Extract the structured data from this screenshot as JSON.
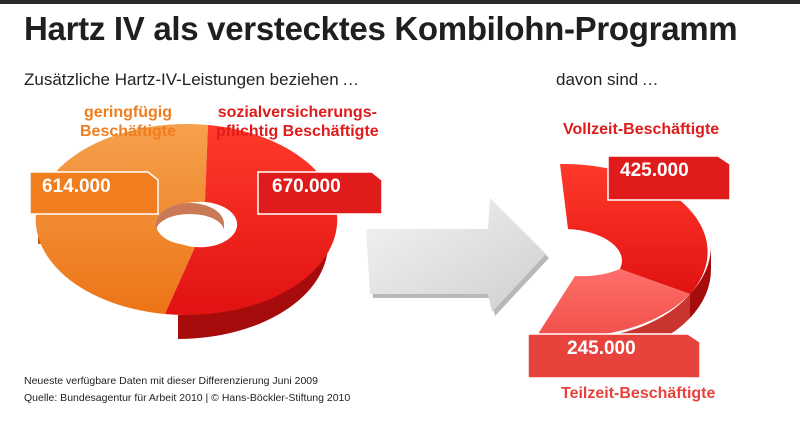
{
  "header": {
    "title": "Hartz IV als verstecktes Kombilohn-Programm",
    "subtitle_left": "Zusätzliche Hartz-IV-Leistungen beziehen …",
    "subtitle_right": "davon sind …"
  },
  "colors": {
    "orange": "#f07d1e",
    "red": "#e01b1b",
    "light_red": "#e8423d",
    "arrow_grey": "#e3e3e3"
  },
  "chart_data": [
    {
      "type": "pie",
      "style": "3d-donut",
      "categories": [
        "geringfügig Beschäftigte",
        "sozialversicherungspflichtig Beschäftigte"
      ],
      "category_labels": [
        [
          "geringfügig",
          "Beschäftigte"
        ],
        [
          "sozialversicherungs-",
          "pflichtig Beschäftigte"
        ]
      ],
      "values": [
        614000,
        670000
      ],
      "value_labels": [
        "614.000",
        "670.000"
      ]
    },
    {
      "type": "pie",
      "style": "3d-partial-donut",
      "categories": [
        "Vollzeit-Beschäftigte",
        "Teilzeit-Beschäftigte"
      ],
      "values": [
        425000,
        245000
      ],
      "value_labels": [
        "425.000",
        "245.000"
      ]
    }
  ],
  "footer": {
    "note": "Neueste verfügbare Daten mit dieser Differenzierung Juni 2009",
    "source": "Quelle: Bundesagentur für Arbeit 2010 | © Hans-Böckler-Stiftung 2010"
  }
}
